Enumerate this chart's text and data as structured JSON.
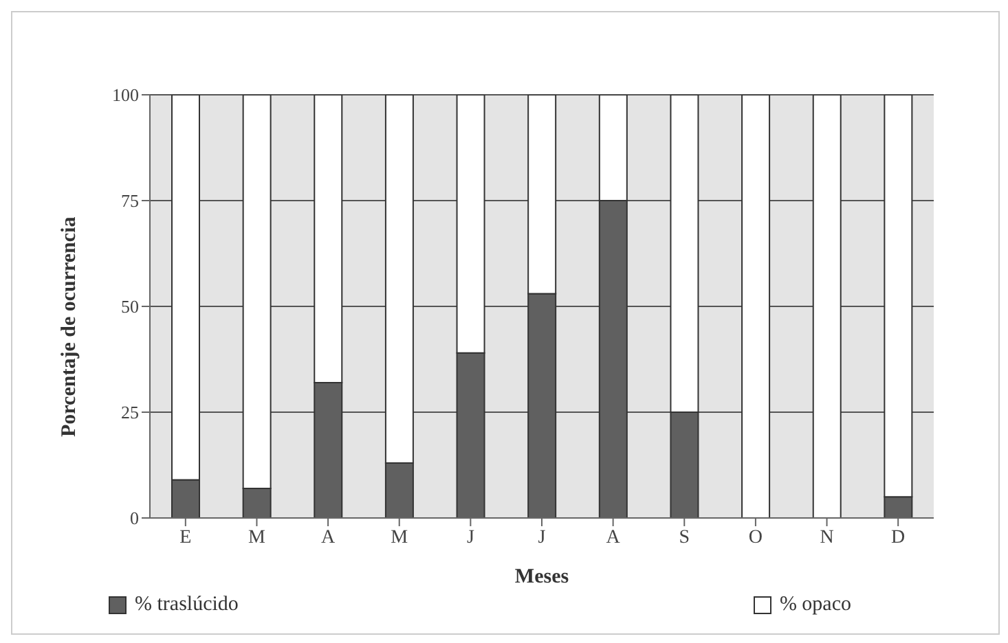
{
  "chart_data": {
    "type": "bar",
    "stacked": true,
    "xlabel": "Meses",
    "ylabel": "Porcentaje de ocurrencia",
    "categories": [
      "E",
      "M",
      "A",
      "M",
      "J",
      "J",
      "A",
      "S",
      "O",
      "N",
      "D"
    ],
    "series": [
      {
        "name": "% traslúcido",
        "color": "#606060",
        "values": [
          9,
          7,
          32,
          13,
          39,
          53,
          75,
          25,
          0,
          0,
          5
        ]
      },
      {
        "name": "% opaco",
        "color": "#ffffff",
        "values": [
          91,
          93,
          68,
          87,
          61,
          47,
          25,
          75,
          100,
          100,
          95
        ]
      }
    ],
    "ylim": [
      0,
      100
    ],
    "yticks": [
      0,
      25,
      50,
      75,
      100
    ],
    "grid": "y",
    "legend": "bottom"
  }
}
